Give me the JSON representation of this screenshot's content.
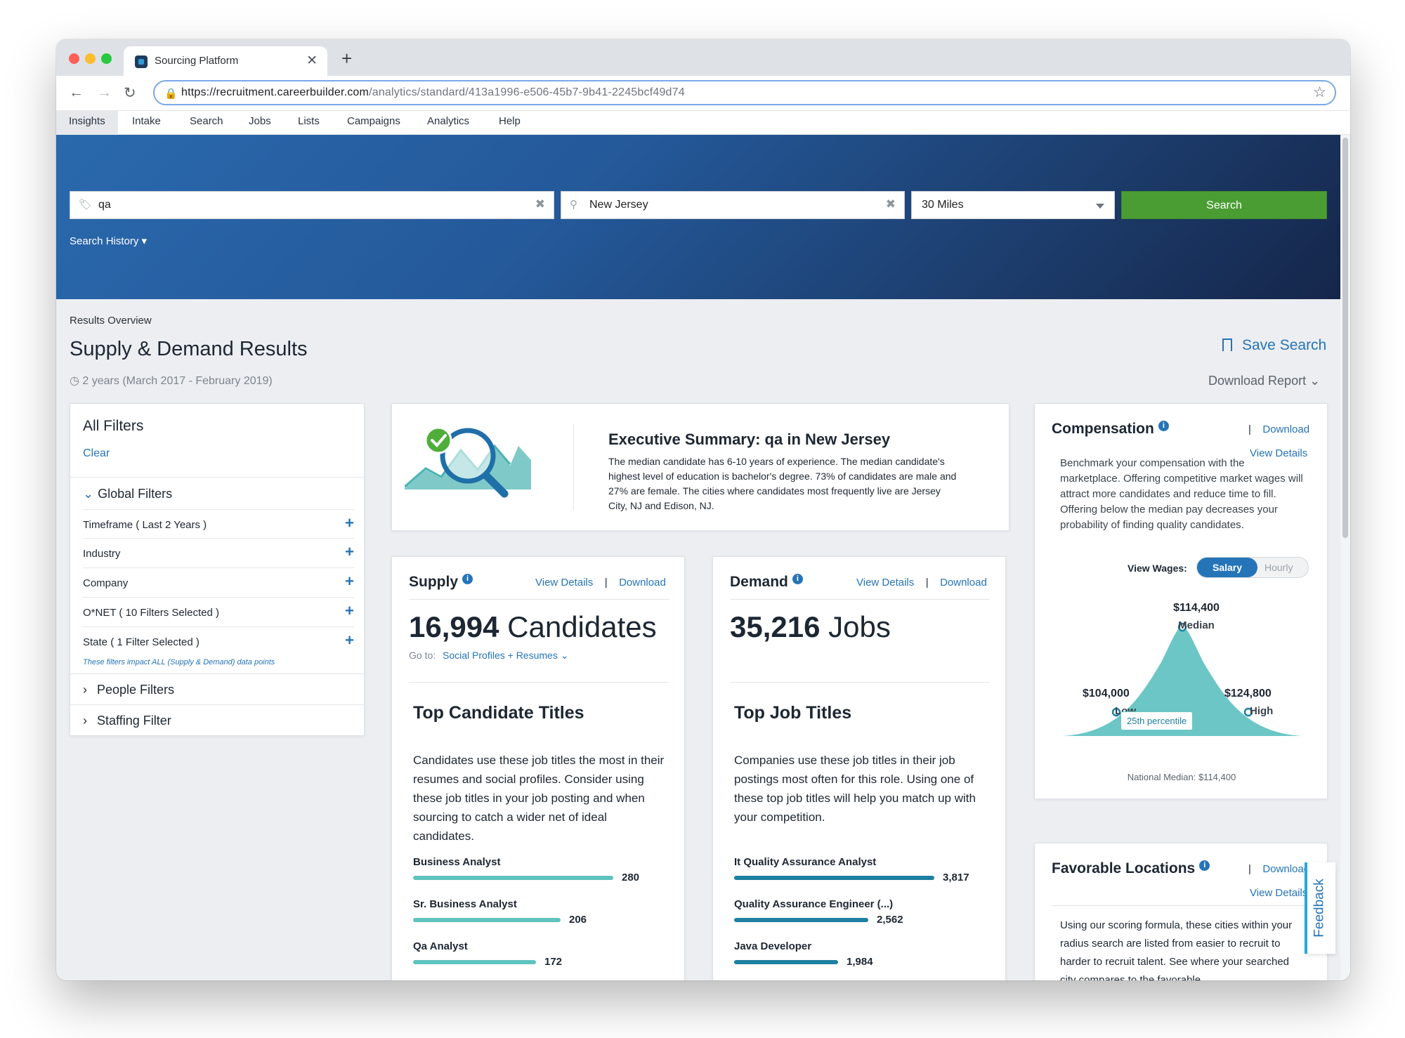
{
  "browser": {
    "tab_title": "Sourcing Platform",
    "tab_close": "✕",
    "new_tab": "+",
    "url_host": "https://recruitment.careerbuilder.com",
    "url_path": "/analytics/standard/413a1996-e506-45b7-9b41-2245bcf49d74",
    "back_icon": "←",
    "forward_icon": "→",
    "reload_icon": "↻",
    "lock_icon": "🔒",
    "star_icon": "☆"
  },
  "app_nav": [
    "Insights",
    "Intake",
    "Search",
    "Jobs",
    "Lists",
    "Campaigns",
    "Analytics",
    "Help"
  ],
  "search": {
    "keyword_value": "qa",
    "location_value": "New Jersey",
    "radius_value": "30 Miles",
    "clear_icon": "✖",
    "search_button": "Search",
    "search_history": "Search History ▾"
  },
  "results": {
    "breadcrumb": "Results Overview",
    "title": "Supply & Demand Results",
    "date_range": "◷ 2 years (March 2017 - February 2019)",
    "save_search": "Save Search",
    "download_report": "Download Report ⌄"
  },
  "filters": {
    "title": "All Filters",
    "clear": "Clear",
    "global_header": "Global Filters",
    "global_items": [
      "Timeframe ( Last 2 Years )",
      "Industry",
      "Company",
      "O*NET ( 10 Filters Selected )",
      "State ( 1 Filter Selected )"
    ],
    "plus": "+",
    "note": "These filters impact ALL (Supply & Demand) data points",
    "people_filters": "People Filters",
    "staffing_filter": "Staffing Filter",
    "chevron_down": "⌄",
    "chevron_right": "›"
  },
  "executive_summary": {
    "title": "Executive Summary: qa in New Jersey",
    "body": "The median candidate has 6-10 years of experience. The median candidate's highest level of education is bachelor's degree. 73% of candidates are male and 27% are female. The cities where candidates most frequently live are Jersey City, NJ and Edison, NJ."
  },
  "supply": {
    "title": "Supply",
    "view_details": "View Details",
    "separator": "|",
    "download": "Download",
    "count": "16,994",
    "unit": "Candidates",
    "goto_label": "Go to:",
    "goto_link": "Social Profiles + Resumes ⌄",
    "top_title": "Top Candidate Titles",
    "top_body": "Candidates use these job titles the most in their resumes and social profiles. Consider using these job titles in your job posting and when sourcing to catch a wider net of ideal candidates.",
    "titles": [
      {
        "name": "Business Analyst",
        "value": "280",
        "fraction": 1.0
      },
      {
        "name": "Sr. Business Analyst",
        "value": "206",
        "fraction": 0.736
      },
      {
        "name": "Qa Analyst",
        "value": "172",
        "fraction": 0.614
      }
    ],
    "bar_color": "#5fc3be"
  },
  "demand": {
    "title": "Demand",
    "view_details": "View Details",
    "separator": "|",
    "download": "Download",
    "count": "35,216",
    "unit": "Jobs",
    "top_title": "Top Job Titles",
    "top_body": "Companies use these job titles in their job postings most often for this role. Using one of these top job titles will help you match up with your competition.",
    "titles": [
      {
        "name": "It Quality Assurance Analyst",
        "value": "3,817",
        "fraction": 1.0
      },
      {
        "name": "Quality Assurance Engineer (...)",
        "value": "2,562",
        "fraction": 0.671
      },
      {
        "name": "Java Developer",
        "value": "1,984",
        "fraction": 0.52
      }
    ],
    "bar_color": "#1e7fa0"
  },
  "compensation": {
    "title": "Compensation",
    "separator": "|",
    "download": "Download",
    "view_details": "View Details",
    "body": "Benchmark your compensation with the marketplace. Offering competitive market wages will attract more candidates and reduce time to fill. Offering below the median pay decreases your probability of finding quality candidates.",
    "view_wages_label": "View Wages:",
    "toggle_on": "Salary",
    "toggle_off": "Hourly",
    "median_value": "$114,400",
    "median_label": "Median",
    "low_value": "$104,000",
    "low_label": "Low",
    "high_value": "$124,800",
    "high_label": "High",
    "percentile_tooltip": "25th percentile",
    "national_median": "National Median: $114,400",
    "curve_color": "#6cc6c6"
  },
  "locations": {
    "title": "Favorable Locations",
    "separator": "|",
    "download": "Download",
    "view_details": "View Details",
    "body": "Using our scoring formula, these cities within your radius search are listed from easier to recruit to harder to recruit talent. See where your searched city compares to the favorable"
  },
  "feedback": "Feedback",
  "colors": {
    "accent": "#2574b8",
    "search_green": "#4a9d33",
    "hero_start": "#2a69ad",
    "hero_end": "#15264a"
  }
}
